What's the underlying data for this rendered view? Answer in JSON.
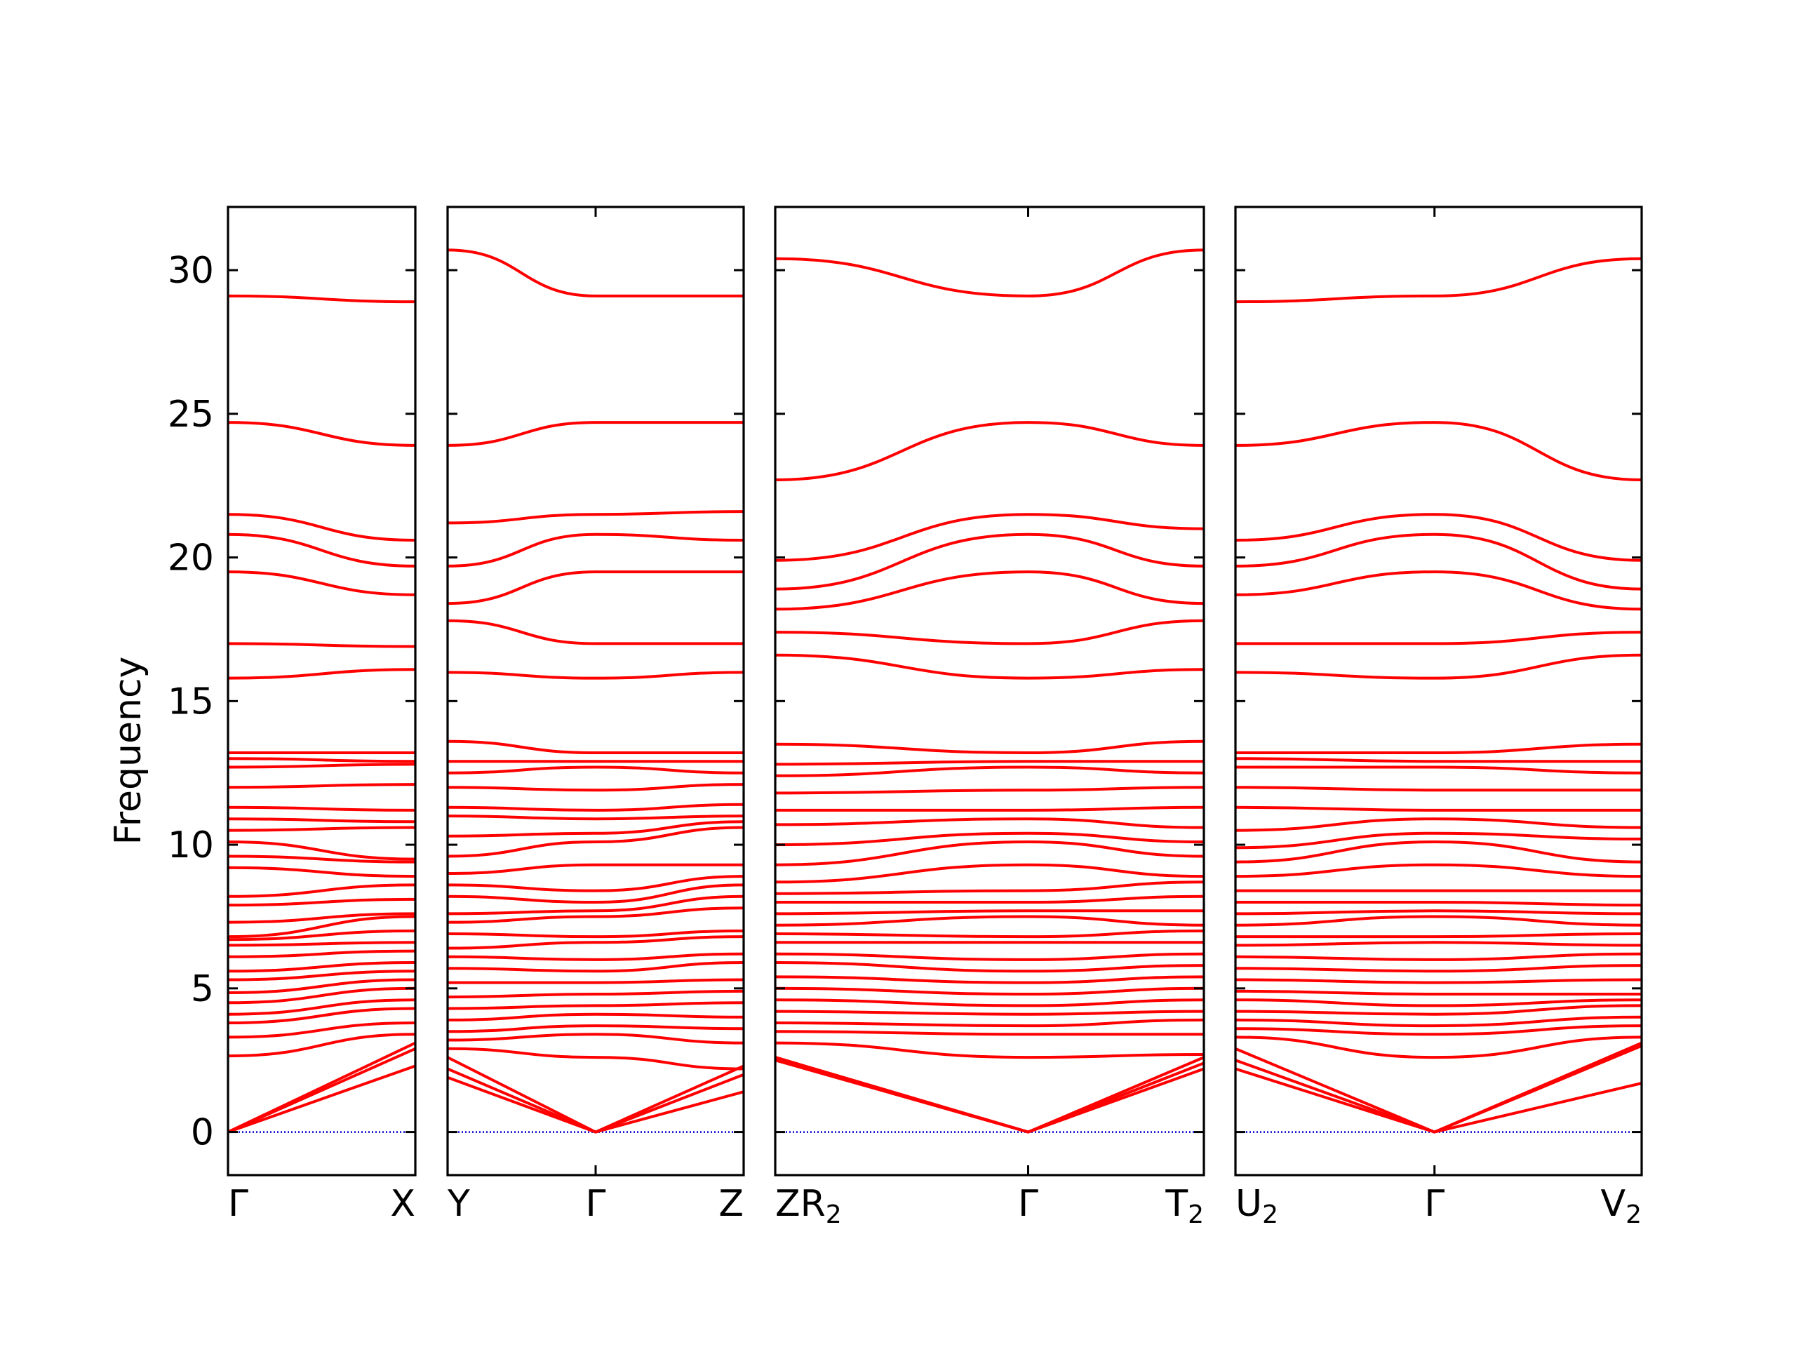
{
  "ylabel": "Frequency",
  "colors": {
    "bands": "#ff0000",
    "zero_line": "#0000cc",
    "frame": "#000000"
  },
  "chart_data": {
    "type": "line",
    "ylabel": "Frequency",
    "ylim": [
      -1.5,
      32.2
    ],
    "yticks": [
      0,
      5,
      10,
      15,
      20,
      25,
      30
    ],
    "grid": false,
    "panels": [
      {
        "xticks": [
          {
            "label": "Γ",
            "x": 0
          },
          {
            "label": "X",
            "x": 1
          }
        ],
        "bands": [
          [
            0,
            2.3
          ],
          [
            0,
            2.9
          ],
          [
            0,
            3.1
          ],
          [
            2.65,
            3.4
          ],
          [
            3.3,
            3.8
          ],
          [
            3.8,
            4.3
          ],
          [
            4.1,
            4.6
          ],
          [
            4.5,
            5.0
          ],
          [
            4.85,
            5.3
          ],
          [
            5.3,
            5.6
          ],
          [
            5.6,
            5.9
          ],
          [
            6.1,
            6.3
          ],
          [
            6.5,
            6.6
          ],
          [
            6.7,
            7.0
          ],
          [
            6.8,
            7.5
          ],
          [
            7.3,
            7.6
          ],
          [
            7.9,
            8.1
          ],
          [
            8.2,
            8.6
          ],
          [
            9.2,
            8.9
          ],
          [
            9.6,
            9.4
          ],
          [
            10.1,
            9.5
          ],
          [
            10.5,
            10.6
          ],
          [
            10.9,
            10.8
          ],
          [
            11.3,
            11.2
          ],
          [
            12.0,
            12.1
          ],
          [
            12.7,
            12.8
          ],
          [
            13.0,
            12.9
          ],
          [
            13.2,
            13.2
          ],
          [
            15.8,
            16.1
          ],
          [
            17.0,
            16.9
          ],
          [
            19.5,
            18.7
          ],
          [
            20.8,
            19.7
          ],
          [
            21.5,
            20.6
          ],
          [
            24.7,
            23.9
          ],
          [
            29.1,
            28.9
          ]
        ]
      },
      {
        "xticks": [
          {
            "label": "Y",
            "x": 0
          },
          {
            "label": "Γ",
            "x": 0.5
          },
          {
            "label": "Z",
            "x": 1
          }
        ],
        "bands": [
          [
            1.9,
            0,
            1.4
          ],
          [
            2.2,
            0,
            2.0
          ],
          [
            2.6,
            0,
            2.3
          ],
          [
            2.9,
            2.6,
            2.2
          ],
          [
            3.2,
            3.4,
            3.1
          ],
          [
            3.5,
            3.7,
            3.6
          ],
          [
            3.9,
            4.1,
            4.0
          ],
          [
            4.3,
            4.4,
            4.5
          ],
          [
            4.7,
            4.8,
            4.9
          ],
          [
            5.2,
            5.2,
            5.3
          ],
          [
            5.7,
            5.6,
            5.9
          ],
          [
            6.1,
            6.0,
            6.2
          ],
          [
            6.4,
            6.6,
            6.8
          ],
          [
            6.9,
            6.8,
            7.0
          ],
          [
            7.3,
            7.5,
            7.8
          ],
          [
            7.6,
            7.7,
            8.2
          ],
          [
            8.2,
            8.0,
            8.6
          ],
          [
            8.6,
            8.4,
            8.9
          ],
          [
            9.0,
            9.3,
            9.3
          ],
          [
            9.6,
            10.1,
            10.6
          ],
          [
            10.3,
            10.4,
            10.8
          ],
          [
            11.0,
            10.9,
            11.0
          ],
          [
            11.3,
            11.2,
            11.4
          ],
          [
            12.0,
            11.9,
            12.1
          ],
          [
            12.5,
            12.7,
            12.5
          ],
          [
            12.9,
            12.9,
            12.9
          ],
          [
            13.6,
            13.2,
            13.2
          ],
          [
            16.0,
            15.8,
            16.0
          ],
          [
            17.8,
            17.0,
            17.0
          ],
          [
            18.4,
            19.5,
            19.5
          ],
          [
            19.7,
            20.8,
            20.6
          ],
          [
            21.2,
            21.5,
            21.6
          ],
          [
            23.9,
            24.7,
            24.7
          ],
          [
            30.7,
            29.1,
            29.1
          ]
        ]
      },
      {
        "xticks": [
          {
            "label": "ZR2",
            "x": 0
          },
          {
            "label": "Γ",
            "x": 0.59
          },
          {
            "label": "T2",
            "x": 1
          }
        ],
        "bands": [
          [
            2.5,
            0,
            2.2
          ],
          [
            2.6,
            0,
            2.4
          ],
          [
            2.6,
            0,
            2.6
          ],
          [
            3.1,
            2.6,
            2.7
          ],
          [
            3.5,
            3.4,
            3.4
          ],
          [
            3.8,
            3.7,
            3.9
          ],
          [
            4.2,
            4.1,
            4.2
          ],
          [
            4.6,
            4.4,
            4.6
          ],
          [
            5.0,
            4.8,
            5.0
          ],
          [
            5.4,
            5.2,
            5.4
          ],
          [
            5.9,
            5.6,
            5.8
          ],
          [
            6.2,
            6.0,
            6.2
          ],
          [
            6.6,
            6.6,
            6.6
          ],
          [
            6.9,
            6.8,
            7.0
          ],
          [
            7.2,
            7.5,
            7.2
          ],
          [
            7.6,
            7.7,
            7.7
          ],
          [
            8.0,
            8.0,
            8.2
          ],
          [
            8.3,
            8.4,
            8.7
          ],
          [
            8.7,
            9.3,
            8.9
          ],
          [
            9.3,
            10.1,
            9.6
          ],
          [
            10.0,
            10.4,
            10.1
          ],
          [
            10.7,
            10.9,
            10.6
          ],
          [
            11.2,
            11.2,
            11.3
          ],
          [
            11.8,
            11.9,
            12.0
          ],
          [
            12.4,
            12.7,
            12.5
          ],
          [
            12.8,
            12.9,
            12.9
          ],
          [
            13.5,
            13.2,
            13.6
          ],
          [
            16.6,
            15.8,
            16.1
          ],
          [
            17.4,
            17.0,
            17.8
          ],
          [
            18.2,
            19.5,
            18.4
          ],
          [
            18.9,
            20.8,
            19.7
          ],
          [
            19.9,
            21.5,
            21.0
          ],
          [
            22.7,
            24.7,
            23.9
          ],
          [
            30.4,
            29.1,
            30.7
          ]
        ]
      },
      {
        "xticks": [
          {
            "label": "U2",
            "x": 0
          },
          {
            "label": "Γ",
            "x": 0.49
          },
          {
            "label": "V2",
            "x": 1
          }
        ],
        "bands": [
          [
            2.2,
            0,
            1.7
          ],
          [
            2.5,
            0,
            3.0
          ],
          [
            2.9,
            0,
            3.1
          ],
          [
            3.3,
            2.6,
            3.3
          ],
          [
            3.6,
            3.4,
            3.7
          ],
          [
            3.9,
            3.7,
            4.0
          ],
          [
            4.2,
            4.1,
            4.4
          ],
          [
            4.6,
            4.4,
            4.6
          ],
          [
            4.9,
            4.8,
            4.8
          ],
          [
            5.3,
            5.2,
            5.3
          ],
          [
            5.7,
            5.6,
            5.8
          ],
          [
            6.1,
            6.0,
            6.2
          ],
          [
            6.5,
            6.6,
            6.5
          ],
          [
            6.8,
            6.8,
            6.9
          ],
          [
            7.2,
            7.5,
            7.2
          ],
          [
            7.6,
            7.7,
            7.6
          ],
          [
            8.0,
            8.0,
            7.9
          ],
          [
            8.4,
            8.4,
            8.4
          ],
          [
            8.9,
            9.3,
            8.9
          ],
          [
            9.4,
            10.1,
            9.4
          ],
          [
            9.9,
            10.4,
            10.2
          ],
          [
            10.5,
            10.9,
            10.6
          ],
          [
            11.3,
            11.2,
            11.2
          ],
          [
            12.0,
            11.9,
            11.9
          ],
          [
            12.7,
            12.7,
            12.5
          ],
          [
            13.0,
            12.9,
            12.9
          ],
          [
            13.2,
            13.2,
            13.5
          ],
          [
            16.0,
            15.8,
            16.6
          ],
          [
            17.0,
            17.0,
            17.4
          ],
          [
            18.7,
            19.5,
            18.2
          ],
          [
            19.7,
            20.8,
            18.9
          ],
          [
            20.6,
            21.5,
            19.9
          ],
          [
            23.9,
            24.7,
            22.7
          ],
          [
            28.9,
            29.1,
            30.4
          ]
        ]
      }
    ]
  }
}
